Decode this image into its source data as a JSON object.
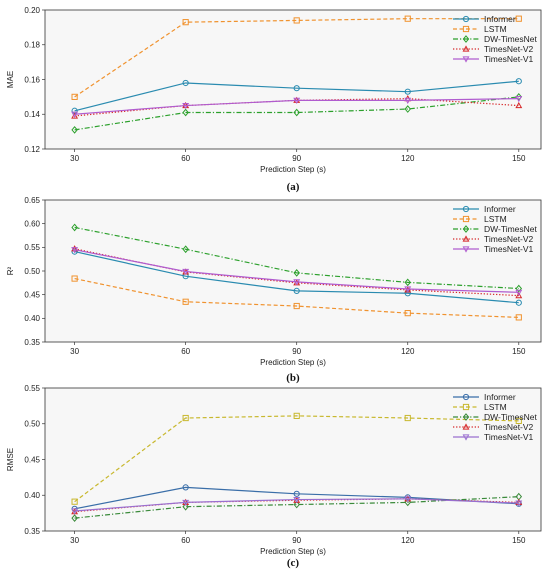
{
  "chart_data": [
    {
      "type": "line",
      "caption": "(a)",
      "xlabel": "Prediction Step (s)",
      "ylabel": "MAE",
      "x": [
        30,
        60,
        90,
        120,
        150
      ],
      "xlim": [
        22,
        156
      ],
      "ylim": [
        0.12,
        0.2
      ],
      "yticks": [
        0.12,
        0.14,
        0.16,
        0.18,
        0.2
      ],
      "ytick_labels": [
        "0.12",
        "0.14",
        "0.16",
        "0.18",
        "0.20"
      ],
      "legend_position": "top-right",
      "grid": false,
      "series": [
        {
          "name": "Informer",
          "color": "#2a8bb0",
          "dash": "solid",
          "marker": "circle",
          "values": [
            0.142,
            0.158,
            0.155,
            0.153,
            0.159
          ]
        },
        {
          "name": "LSTM",
          "color": "#f0922e",
          "dash": "dashed",
          "marker": "square",
          "values": [
            0.15,
            0.193,
            0.194,
            0.195,
            0.195
          ]
        },
        {
          "name": "DW-TimesNet",
          "color": "#2ca02c",
          "dash": "dashdot",
          "marker": "diamond",
          "values": [
            0.131,
            0.141,
            0.141,
            0.143,
            0.15
          ]
        },
        {
          "name": "TimesNet-V2",
          "color": "#d62728",
          "dash": "dotted",
          "marker": "triangle-up",
          "values": [
            0.139,
            0.145,
            0.148,
            0.149,
            0.145
          ]
        },
        {
          "name": "TimesNet-V1",
          "color": "#b05ccf",
          "dash": "solid",
          "marker": "triangle-down",
          "values": [
            0.14,
            0.145,
            0.148,
            0.148,
            0.149
          ]
        }
      ]
    },
    {
      "type": "line",
      "caption": "(b)",
      "xlabel": "Prediction Step (s)",
      "ylabel": "R²",
      "x": [
        30,
        60,
        90,
        120,
        150
      ],
      "xlim": [
        22,
        156
      ],
      "ylim": [
        0.35,
        0.65
      ],
      "yticks": [
        0.35,
        0.4,
        0.45,
        0.5,
        0.55,
        0.6,
        0.65
      ],
      "ytick_labels": [
        "0.35",
        "0.40",
        "0.45",
        "0.50",
        "0.55",
        "0.60",
        "0.65"
      ],
      "legend_position": "top-right",
      "grid": false,
      "series": [
        {
          "name": "Informer",
          "color": "#2a8bb0",
          "dash": "solid",
          "marker": "circle",
          "values": [
            0.541,
            0.489,
            0.458,
            0.453,
            0.433
          ]
        },
        {
          "name": "LSTM",
          "color": "#f0922e",
          "dash": "dashed",
          "marker": "square",
          "values": [
            0.484,
            0.435,
            0.426,
            0.411,
            0.402
          ]
        },
        {
          "name": "DW-TimesNet",
          "color": "#2ca02c",
          "dash": "dashdot",
          "marker": "diamond",
          "values": [
            0.592,
            0.546,
            0.496,
            0.476,
            0.463
          ]
        },
        {
          "name": "TimesNet-V2",
          "color": "#d62728",
          "dash": "dotted",
          "marker": "triangle-up",
          "values": [
            0.547,
            0.498,
            0.475,
            0.46,
            0.448
          ]
        },
        {
          "name": "TimesNet-V1",
          "color": "#b05ccf",
          "dash": "solid",
          "marker": "triangle-down",
          "values": [
            0.545,
            0.499,
            0.477,
            0.462,
            0.455
          ]
        }
      ]
    },
    {
      "type": "line",
      "caption": "(c)",
      "xlabel": "Prediction Step (s)",
      "ylabel": "RMSE",
      "x": [
        30,
        60,
        90,
        120,
        150
      ],
      "xlim": [
        22,
        156
      ],
      "ylim": [
        0.35,
        0.55
      ],
      "yticks": [
        0.35,
        0.4,
        0.45,
        0.5,
        0.55
      ],
      "ytick_labels": [
        "0.35",
        "0.40",
        "0.45",
        "0.50",
        "0.55"
      ],
      "legend_position": "top-right",
      "grid": false,
      "series": [
        {
          "name": "Informer",
          "color": "#3a6ea8",
          "dash": "solid",
          "marker": "circle",
          "values": [
            0.381,
            0.411,
            0.402,
            0.397,
            0.388
          ]
        },
        {
          "name": "LSTM",
          "color": "#c8b82e",
          "dash": "dashed",
          "marker": "square",
          "values": [
            0.391,
            0.508,
            0.511,
            0.508,
            0.504
          ]
        },
        {
          "name": "DW-TimesNet",
          "color": "#3a8a3a",
          "dash": "dashdot",
          "marker": "diamond",
          "values": [
            0.368,
            0.384,
            0.387,
            0.39,
            0.398
          ]
        },
        {
          "name": "TimesNet-V2",
          "color": "#d62728",
          "dash": "dotted",
          "marker": "triangle-up",
          "values": [
            0.377,
            0.39,
            0.393,
            0.395,
            0.39
          ]
        },
        {
          "name": "TimesNet-V1",
          "color": "#9a6fd0",
          "dash": "solid",
          "marker": "triangle-down",
          "values": [
            0.378,
            0.39,
            0.394,
            0.395,
            0.389
          ]
        }
      ]
    }
  ]
}
